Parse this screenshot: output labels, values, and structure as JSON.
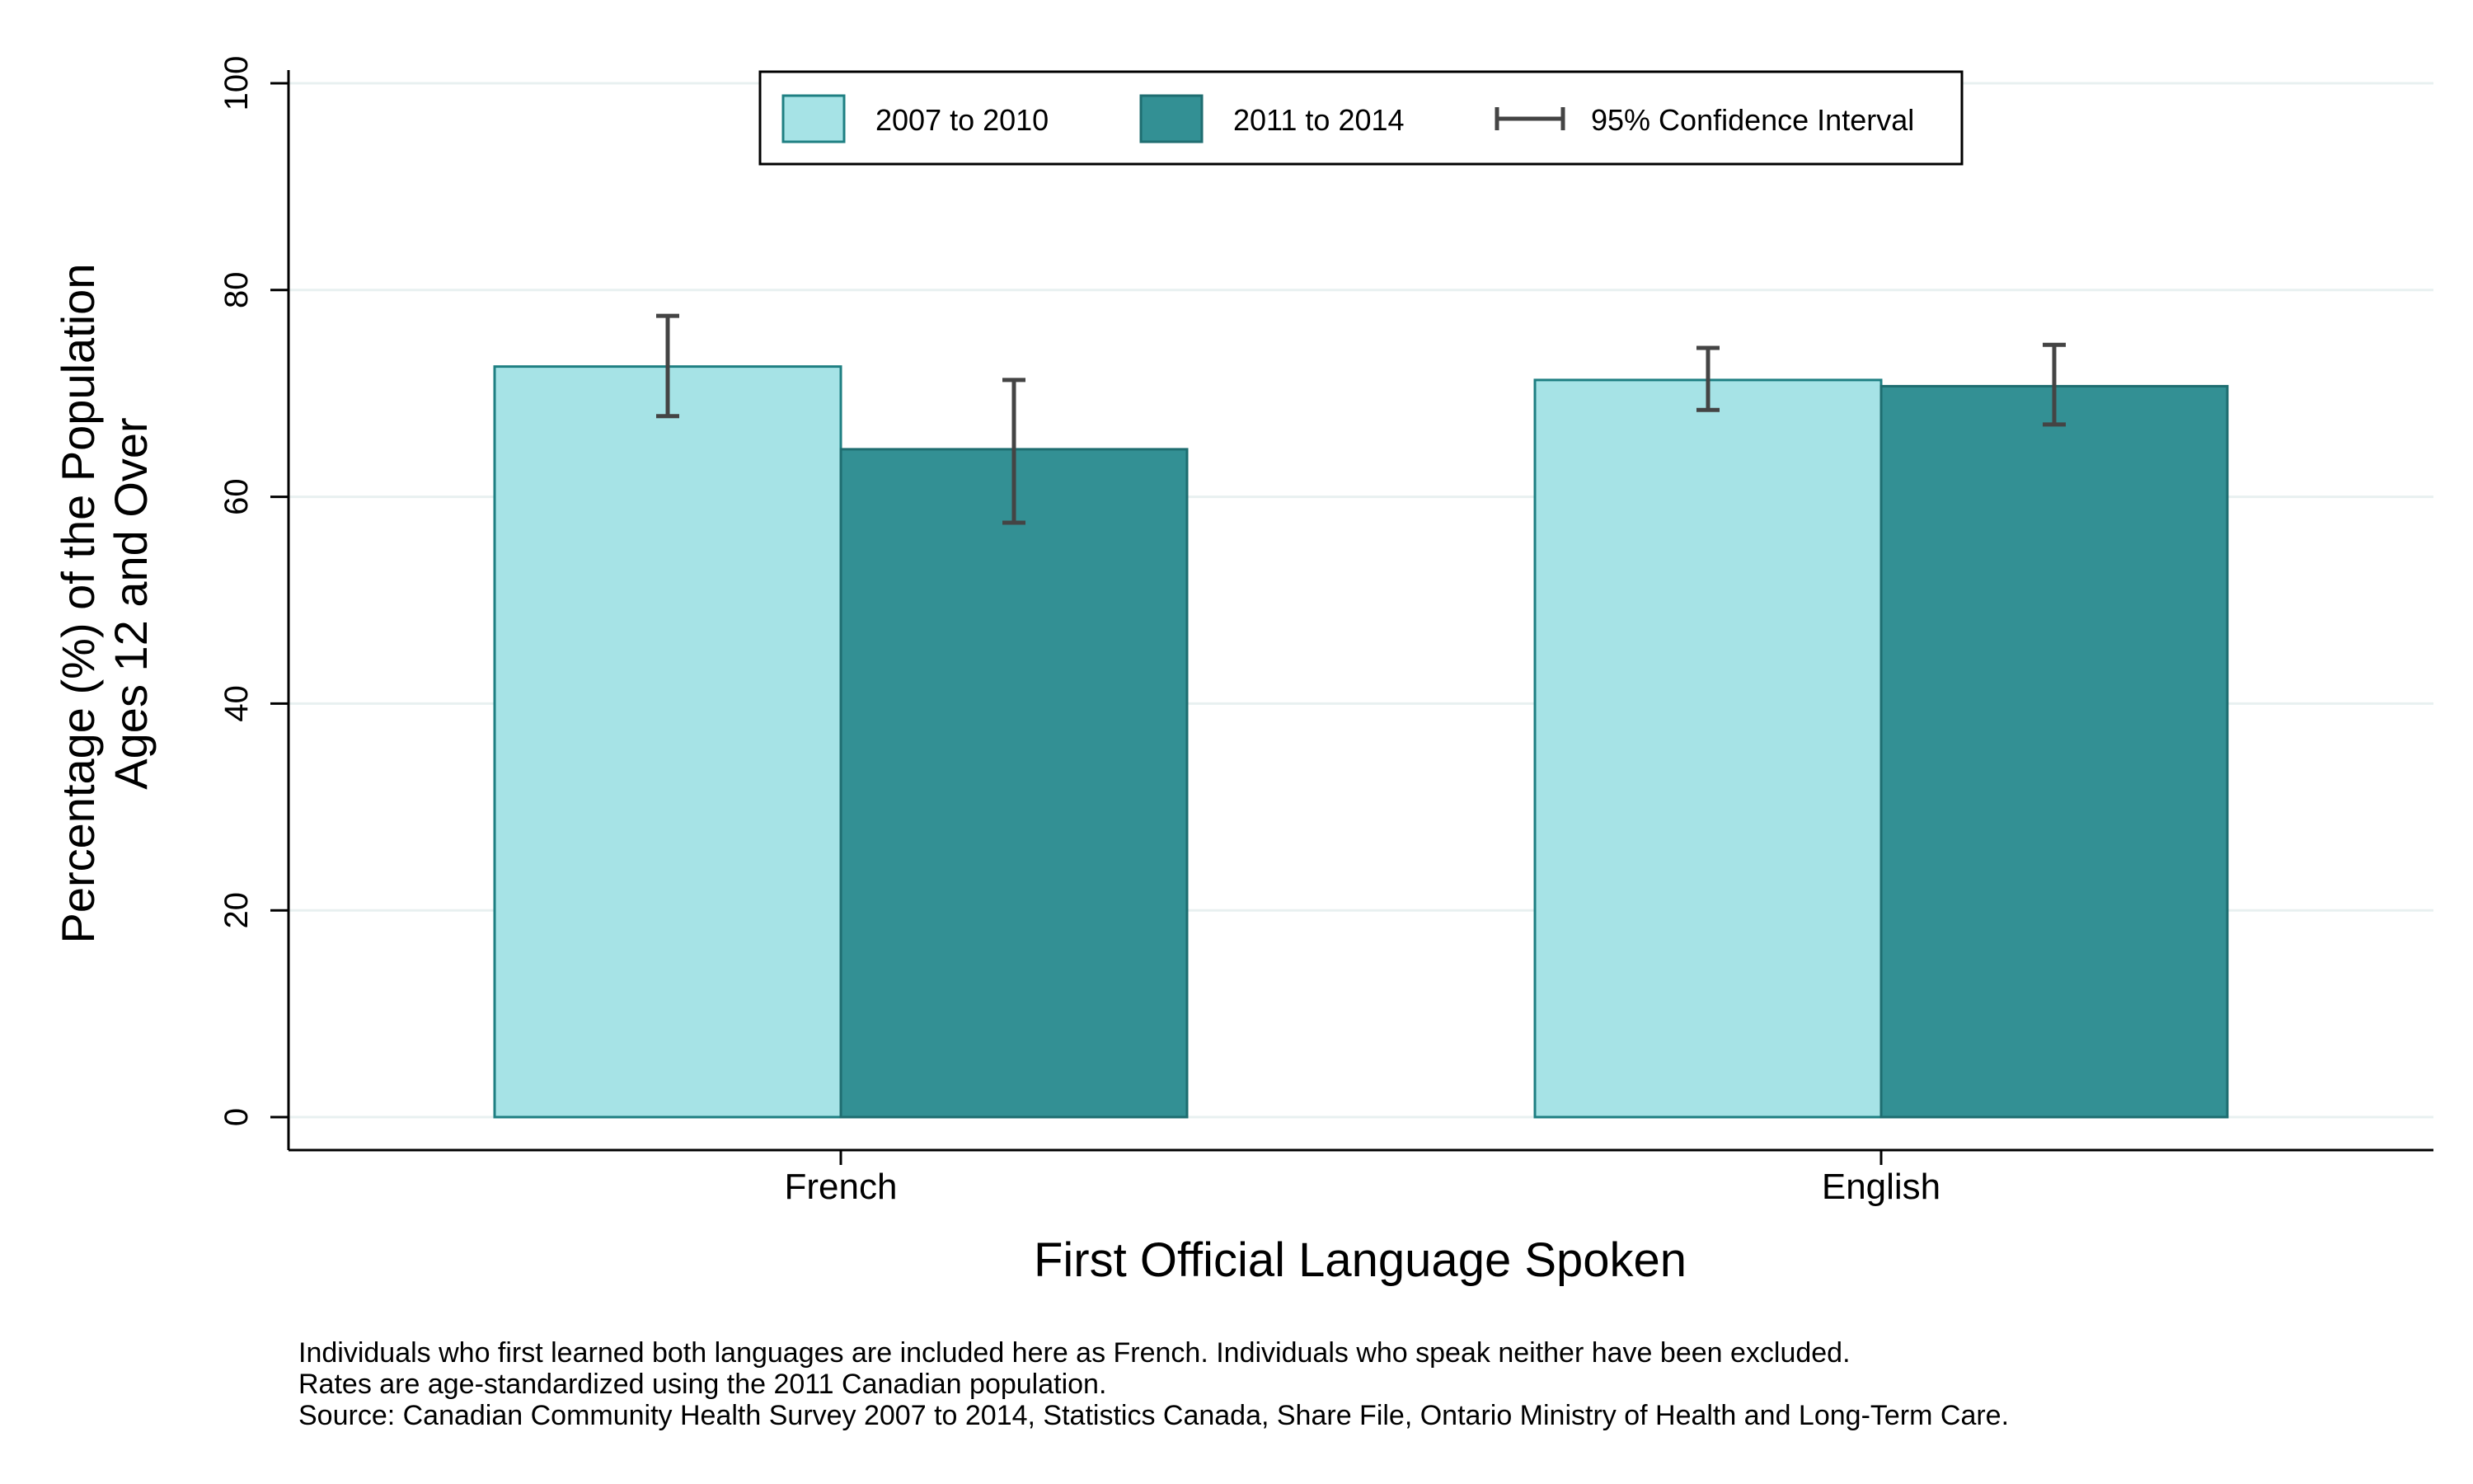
{
  "chart_data": {
    "type": "bar",
    "categories": [
      "French",
      "English"
    ],
    "series": [
      {
        "name": "2007 to 2010",
        "color": "#a6e3e6",
        "stroke": "#1e7f82",
        "values": [
          72.6,
          71.3
        ],
        "ci_low": [
          67.8,
          68.4
        ],
        "ci_high": [
          77.5,
          74.4
        ]
      },
      {
        "name": "2011 to 2014",
        "color": "#339094",
        "stroke": "#1e6d70",
        "values": [
          64.6,
          70.7
        ],
        "ci_low": [
          57.5,
          67.0
        ],
        "ci_high": [
          71.3,
          74.7
        ]
      }
    ],
    "ci_label": "95% Confidence Interval",
    "xlabel": "First Official Language Spoken",
    "ylabel": [
      "Percentage (%) of the Population",
      "Ages 12 and Over"
    ],
    "ylim": [
      0,
      100
    ],
    "yticks": [
      0,
      20,
      40,
      60,
      80,
      100
    ],
    "grid": true,
    "legend_position": "top-center"
  },
  "footnotes": [
    "Individuals who first learned both languages are included here as French.  Individuals who speak neither have been excluded.",
    "Rates are age-standardized using the 2011 Canadian population.",
    "Source: Canadian Community Health Survey 2007 to 2014, Statistics Canada, Share File, Ontario Ministry of Health and Long-Term Care."
  ],
  "colors": {
    "gridline": "#e8f0f0",
    "axis": "#000000",
    "error_bar": "#444444"
  }
}
